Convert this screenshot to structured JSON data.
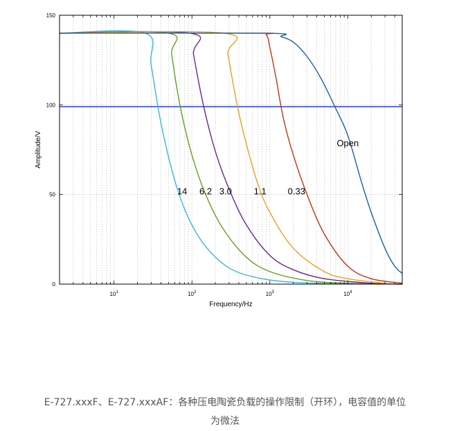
{
  "chart_data": {
    "type": "line",
    "xlabel": "Frequency/Hz",
    "ylabel": "Amplitude/V",
    "x_scale": "log",
    "xlim": [
      2,
      50000
    ],
    "ylim": [
      0,
      150
    ],
    "y_ticks": [
      "0",
      "50",
      "100",
      "150"
    ],
    "x_ticks": [
      {
        "value": 10,
        "base": "10",
        "exp": "1"
      },
      {
        "value": 100,
        "base": "10",
        "exp": "2"
      },
      {
        "value": 1000,
        "base": "10",
        "exp": "3"
      },
      {
        "value": 10000,
        "base": "10",
        "exp": "4"
      }
    ],
    "grid": "dotted",
    "reference_line": {
      "y": 99,
      "color": "#3b4bd4"
    },
    "series": [
      {
        "name": "14",
        "color": "#3ab6dd",
        "points": [
          [
            2,
            140
          ],
          [
            25,
            140
          ],
          [
            30,
            122
          ],
          [
            40,
            90
          ],
          [
            60,
            58
          ],
          [
            90,
            37
          ],
          [
            150,
            21
          ],
          [
            300,
            9
          ],
          [
            700,
            3.5
          ],
          [
            2000,
            1
          ],
          [
            10000,
            0.2
          ],
          [
            50000,
            0
          ]
        ],
        "label_at": [
          75,
          50
        ]
      },
      {
        "name": "6.2",
        "color": "#66a020",
        "points": [
          [
            2,
            140
          ],
          [
            50,
            140
          ],
          [
            55,
            128
          ],
          [
            70,
            100
          ],
          [
            100,
            72
          ],
          [
            150,
            50
          ],
          [
            250,
            31
          ],
          [
            500,
            15
          ],
          [
            1000,
            7
          ],
          [
            3000,
            2
          ],
          [
            10000,
            0.5
          ],
          [
            50000,
            0
          ]
        ],
        "label_at": [
          150,
          50
        ]
      },
      {
        "name": "3.0",
        "color": "#6b2590",
        "points": [
          [
            2,
            140
          ],
          [
            95,
            140
          ],
          [
            105,
            128
          ],
          [
            140,
            100
          ],
          [
            200,
            74
          ],
          [
            300,
            53
          ],
          [
            500,
            33
          ],
          [
            1000,
            16
          ],
          [
            2000,
            8
          ],
          [
            5000,
            3
          ],
          [
            20000,
            0.5
          ],
          [
            50000,
            0
          ]
        ],
        "label_at": [
          270,
          50
        ]
      },
      {
        "name": "1.1",
        "color": "#e8a21c",
        "points": [
          [
            2,
            140
          ],
          [
            260,
            140
          ],
          [
            290,
            128
          ],
          [
            380,
            100
          ],
          [
            500,
            78
          ],
          [
            700,
            56
          ],
          [
            1000,
            40
          ],
          [
            2000,
            20
          ],
          [
            5000,
            7
          ],
          [
            10000,
            3
          ],
          [
            30000,
            0.5
          ],
          [
            50000,
            0
          ]
        ],
        "label_at": [
          750,
          50
        ]
      },
      {
        "name": "0.33",
        "color": "#c03418",
        "points": [
          [
            2,
            140
          ],
          [
            650,
            140
          ],
          [
            900,
            139
          ],
          [
            1000,
            132
          ],
          [
            1200,
            115
          ],
          [
            1500,
            92
          ],
          [
            2000,
            72
          ],
          [
            3000,
            50
          ],
          [
            5000,
            28
          ],
          [
            10000,
            10
          ],
          [
            20000,
            3
          ],
          [
            50000,
            0.5
          ]
        ],
        "label_at": [
          2200,
          50
        ]
      },
      {
        "name": "Open",
        "color": "#1a5fa6",
        "points": [
          [
            2,
            140
          ],
          [
            900,
            140
          ],
          [
            1400,
            138
          ],
          [
            2000,
            135
          ],
          [
            3000,
            127
          ],
          [
            4500,
            115
          ],
          [
            7000,
            98
          ],
          [
            10000,
            83
          ],
          [
            15000,
            57
          ],
          [
            20000,
            40
          ],
          [
            30000,
            20
          ],
          [
            40000,
            10
          ],
          [
            50000,
            6
          ]
        ],
        "label_at": [
          10000,
          77
        ]
      }
    ]
  },
  "caption": {
    "line1": "E-727.xxxF、E-727.xxxAF：各种压电陶瓷负载的操作限制（开环），电容值的单位",
    "line2": "为微法"
  }
}
